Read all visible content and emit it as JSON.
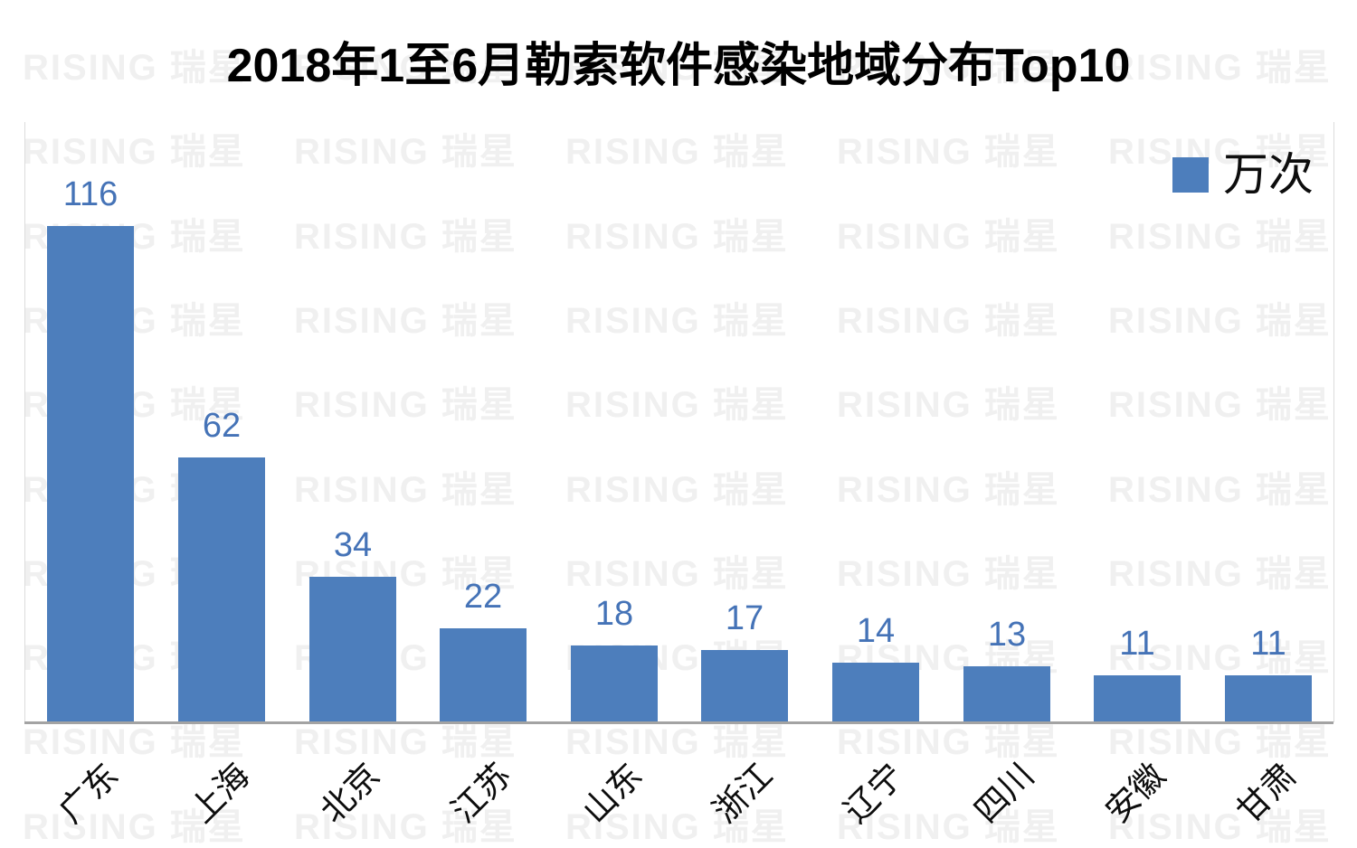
{
  "title": "2018年1至6月勒索软件感染地域分布Top10",
  "legend": {
    "label": "万次",
    "swatch_color": "#4D7EBC"
  },
  "watermark": {
    "text": "RISING 瑞星",
    "color": "#F0F0F0"
  },
  "colors": {
    "bar": "#4D7EBC",
    "value_label": "#4573B7",
    "axis_line": "#A3A3A3",
    "plot_border": "#DCDCDC"
  },
  "chart_data": {
    "type": "bar",
    "title": "2018年1至6月勒索软件感染地域分布Top10",
    "categories": [
      "广东",
      "上海",
      "北京",
      "江苏",
      "山东",
      "浙江",
      "辽宁",
      "四川",
      "安徽",
      "甘肃"
    ],
    "values": [
      116,
      62,
      34,
      22,
      18,
      17,
      14,
      13,
      11,
      11
    ],
    "series": [
      {
        "name": "万次",
        "values": [
          116,
          62,
          34,
          22,
          18,
          17,
          14,
          13,
          11,
          11
        ]
      }
    ],
    "xlabel": "",
    "ylabel": "",
    "ylim": [
      0,
      140
    ],
    "grid": false,
    "y_axis_visible": false,
    "data_labels": true,
    "legend_position": "top-right",
    "x_tick_rotation": 45
  }
}
